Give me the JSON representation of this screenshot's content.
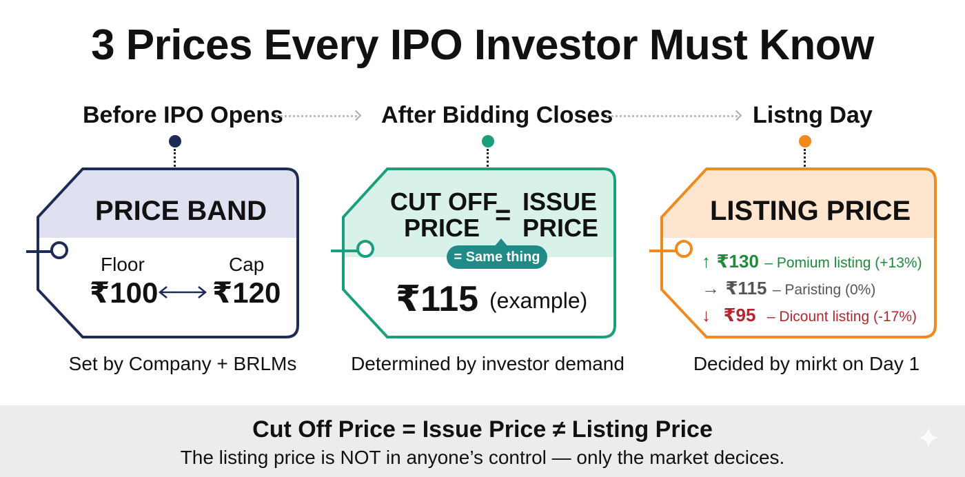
{
  "title": "3 Prices Every IPO Investor Must Know",
  "stages": [
    {
      "label": "Before IPO Opens",
      "color": "#1f2b57"
    },
    {
      "label": "After Bidding Closes",
      "color": "#1a9e7c"
    },
    {
      "label": "Listng Day",
      "color": "#f08a1c"
    }
  ],
  "price_band": {
    "heading": "PRICE BAND",
    "floor_label": "Floor",
    "floor_value": "₹100",
    "cap_label": "Cap",
    "cap_value": "₹120",
    "caption": "Set by Company + BRLMs"
  },
  "cut_off": {
    "heading_left_line1": "CUT OFF",
    "heading_left_line2": "PRICE",
    "equals": "=",
    "heading_right_line1": "ISSUE",
    "heading_right_line2": "PRICE",
    "badge": "= Same thing",
    "value": "₹115",
    "value_note": "(example)",
    "caption": "Determined by investor demand"
  },
  "listing": {
    "heading": "LISTING PRICE",
    "rows": [
      {
        "arrow": "↑",
        "value": "₹130",
        "desc": "– Pomium listing (+13%)",
        "color": "#1e8a3a"
      },
      {
        "arrow": "→",
        "value": "₹115",
        "desc": "– Paristing (0%)",
        "color": "#555555"
      },
      {
        "arrow": "↓",
        "value": "₹95",
        "desc": "– Dicount listing (-17%)",
        "color": "#b3262e"
      }
    ],
    "caption": "Decided by mirkt on Day 1"
  },
  "summary": {
    "headline": "Cut Off Price = Issue Price ≠ Listing Price",
    "sub": "The listing price is NOT in anyone’s control — only the market decices."
  },
  "colors": {
    "navy": "#1f2b57",
    "navy_fill": "#dfe0f0",
    "green": "#1a9e7c",
    "green_fill": "#d9f2e9",
    "orange": "#f08a1c",
    "orange_fill": "#fde5cf",
    "band": "#ececec"
  }
}
